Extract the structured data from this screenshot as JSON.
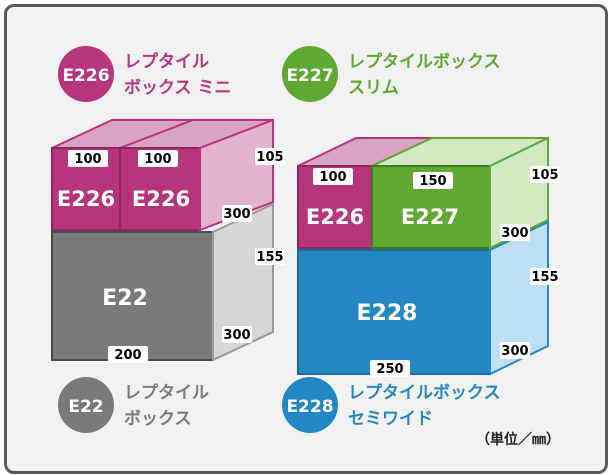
{
  "legend": [
    {
      "code": "E226",
      "line1": "レプタイル",
      "line2": "ボックス ミニ",
      "color": "#b7357a"
    },
    {
      "code": "E227",
      "line1": "レプタイルボックス",
      "line2": "スリム",
      "color": "#5fa833"
    },
    {
      "code": "E22",
      "line1": "レプタイル",
      "line2": "ボックス",
      "color": "#7a7a7a"
    },
    {
      "code": "E228",
      "line1": "レプタイルボックス",
      "line2": "セミワイド",
      "color": "#2387c2"
    }
  ],
  "left_stack": {
    "top_box_a": "E226",
    "top_box_b": "E226",
    "bottom_box": "E22",
    "dims": {
      "w_a": "100",
      "w_b": "100",
      "h_top": "105",
      "d_top": "300",
      "h_bottom": "155",
      "d_bottom": "300",
      "w_bottom": "200"
    }
  },
  "right_stack": {
    "top_box_a": "E226",
    "top_box_b": "E227",
    "bottom_box": "E228",
    "dims": {
      "w_a": "100",
      "w_b": "150",
      "h_top": "105",
      "d_top": "300",
      "h_bottom": "155",
      "d_bottom": "300",
      "w_bottom": "250"
    }
  },
  "unit_note": "（単位／㎜）",
  "colors": {
    "e226_front": "#b7357a",
    "e226_top": "#d9a3c3",
    "e226_side": "#e3b4cf",
    "e227_front": "#5fa833",
    "e227_top": "#d4e8c3",
    "e22_front": "#7a7a7a",
    "e22_side": "#d6d6d6",
    "e228_front": "#2387c2",
    "e228_side": "#bfe0f2",
    "frame": "#595959",
    "bg": "#f1f1f1"
  }
}
